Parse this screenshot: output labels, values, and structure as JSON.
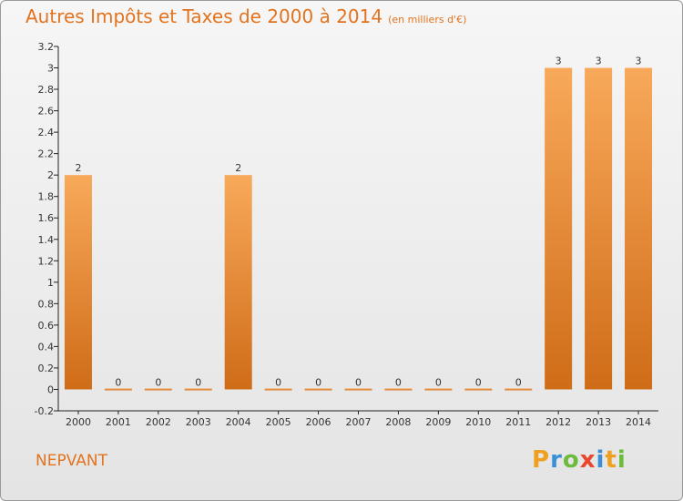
{
  "header": {
    "title": "Autres Impôts et Taxes de 2000 à 2014",
    "subtitle": "(en milliers d'€)"
  },
  "footer": {
    "commune": "NEPVANT",
    "logo_letters": [
      "P",
      "r",
      "o",
      "x",
      "i",
      "t",
      "i"
    ],
    "logo_colors": [
      "#f0a020",
      "#3b8fd6",
      "#6dbb3c",
      "#e8462e",
      "#3b8fd6",
      "#f0a020",
      "#6dbb3c"
    ]
  },
  "chart_data": {
    "type": "bar",
    "title": "Autres Impôts et Taxes de 2000 à 2014",
    "subtitle": "(en milliers d'€)",
    "categories": [
      "2000",
      "2001",
      "2002",
      "2003",
      "2004",
      "2005",
      "2006",
      "2007",
      "2008",
      "2009",
      "2010",
      "2011",
      "2012",
      "2013",
      "2014"
    ],
    "values": [
      2,
      0,
      0,
      0,
      2,
      0,
      0,
      0,
      0,
      0,
      0,
      0,
      3,
      3,
      3
    ],
    "data_labels": [
      "2",
      "0",
      "0",
      "0",
      "2",
      "0",
      "0",
      "0",
      "0",
      "0",
      "0",
      "0",
      "3",
      "3",
      "3"
    ],
    "ylim": [
      -0.2,
      3.2
    ],
    "yticks": [
      "-0.2",
      "0",
      "0.2",
      "0.4",
      "0.6",
      "0.8",
      "1",
      "1.2",
      "1.4",
      "1.6",
      "1.8",
      "2",
      "2.2",
      "2.4",
      "2.6",
      "2.8",
      "3",
      "3.2"
    ],
    "ytick_values": [
      -0.2,
      0,
      0.2,
      0.4,
      0.6,
      0.8,
      1,
      1.2,
      1.4,
      1.6,
      1.8,
      2,
      2.2,
      2.4,
      2.6,
      2.8,
      3,
      3.2
    ],
    "grid": false,
    "bar_color_top": "#f8a95a",
    "bar_color_bottom": "#cf6c18",
    "axis_color": "#222222"
  }
}
